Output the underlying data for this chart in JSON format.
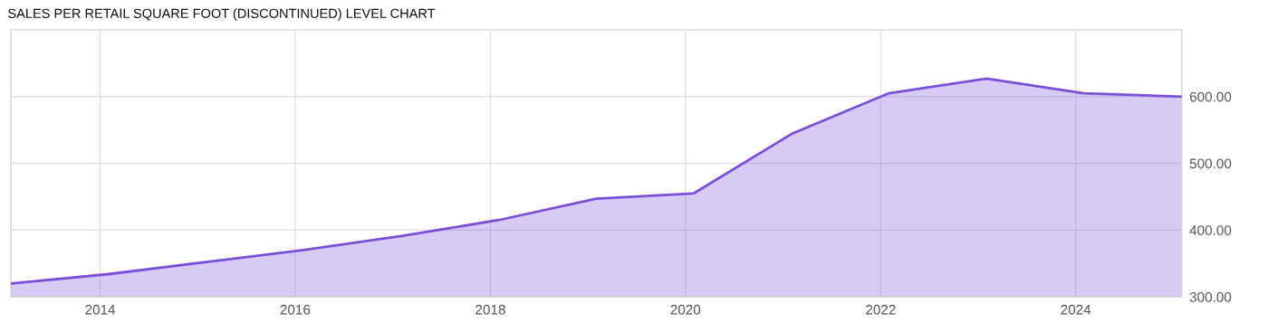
{
  "chart_data": {
    "type": "area",
    "title": "SALES PER RETAIL SQUARE FOOT (DISCONTINUED) LEVEL CHART",
    "x": [
      "2013-02",
      "2014-02",
      "2015-02",
      "2016-02",
      "2017-02",
      "2018-02",
      "2019-02",
      "2020-02",
      "2021-02",
      "2022-02",
      "2023-02",
      "2024-02",
      "2025-02"
    ],
    "series": [
      {
        "color": "#7b4fd9",
        "values": [
          320,
          334,
          352,
          370,
          391,
          415,
          447,
          455,
          544,
          605,
          627,
          605,
          600
        ]
      }
    ],
    "xlim": [
      "2013-02",
      "2025-02"
    ],
    "xticks": [
      "2014",
      "2016",
      "2018",
      "2020",
      "2022",
      "2024"
    ],
    "ylim": [
      300,
      700
    ],
    "yticks": [
      {
        "value": 300,
        "label": "300.00"
      },
      {
        "value": 400,
        "label": "400.00"
      },
      {
        "value": 500,
        "label": "500.00"
      },
      {
        "value": 600,
        "label": "600.00"
      }
    ],
    "grid": true
  }
}
